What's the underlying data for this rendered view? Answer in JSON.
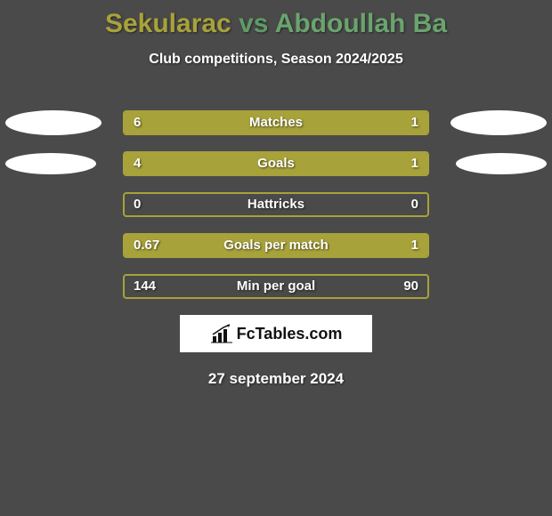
{
  "background_color": "#4a4a4a",
  "header": {
    "player1": "Sekularac",
    "vs": " vs ",
    "player2": "Abdoullah Ba",
    "color1": "#a8a23a",
    "color_vs": "#5f9b67",
    "color2": "#6aa46e",
    "fontsize": 30
  },
  "subtitle": {
    "text": "Club competitions, Season 2024/2025",
    "color": "#ffffff",
    "fontsize": 16
  },
  "chart": {
    "bar_track_border": "#a8a23a",
    "bar_fill_color": "#a8a23a",
    "player1_ellipse_color": "#ffffff",
    "player2_ellipse_color": "#ffffff",
    "ellipse_w1": 108,
    "ellipse_h1": 28,
    "ellipse_w2": 102,
    "ellipse_h2": 24,
    "stats": [
      {
        "label": "Matches",
        "left_value": "6",
        "right_value": "1",
        "left_pct": 76,
        "right_pct": 24,
        "show_left_ellipse": true,
        "show_right_ellipse": true,
        "ellipse_size": 1
      },
      {
        "label": "Goals",
        "left_value": "4",
        "right_value": "1",
        "left_pct": 76,
        "right_pct": 24,
        "show_left_ellipse": true,
        "show_right_ellipse": true,
        "ellipse_size": 2
      },
      {
        "label": "Hattricks",
        "left_value": "0",
        "right_value": "0",
        "left_pct": 0,
        "right_pct": 0,
        "show_left_ellipse": false,
        "show_right_ellipse": false
      },
      {
        "label": "Goals per match",
        "left_value": "0.67",
        "right_value": "1",
        "left_pct": 0,
        "right_pct": 100,
        "show_left_ellipse": false,
        "show_right_ellipse": false
      },
      {
        "label": "Min per goal",
        "left_value": "144",
        "right_value": "90",
        "left_pct": 0,
        "right_pct": 0,
        "show_left_ellipse": false,
        "show_right_ellipse": false
      }
    ]
  },
  "logo": {
    "text": "FcTables.com",
    "bg": "#ffffff",
    "text_color": "#111111"
  },
  "date": {
    "text": "27 september 2024",
    "color": "#ffffff",
    "fontsize": 17
  }
}
